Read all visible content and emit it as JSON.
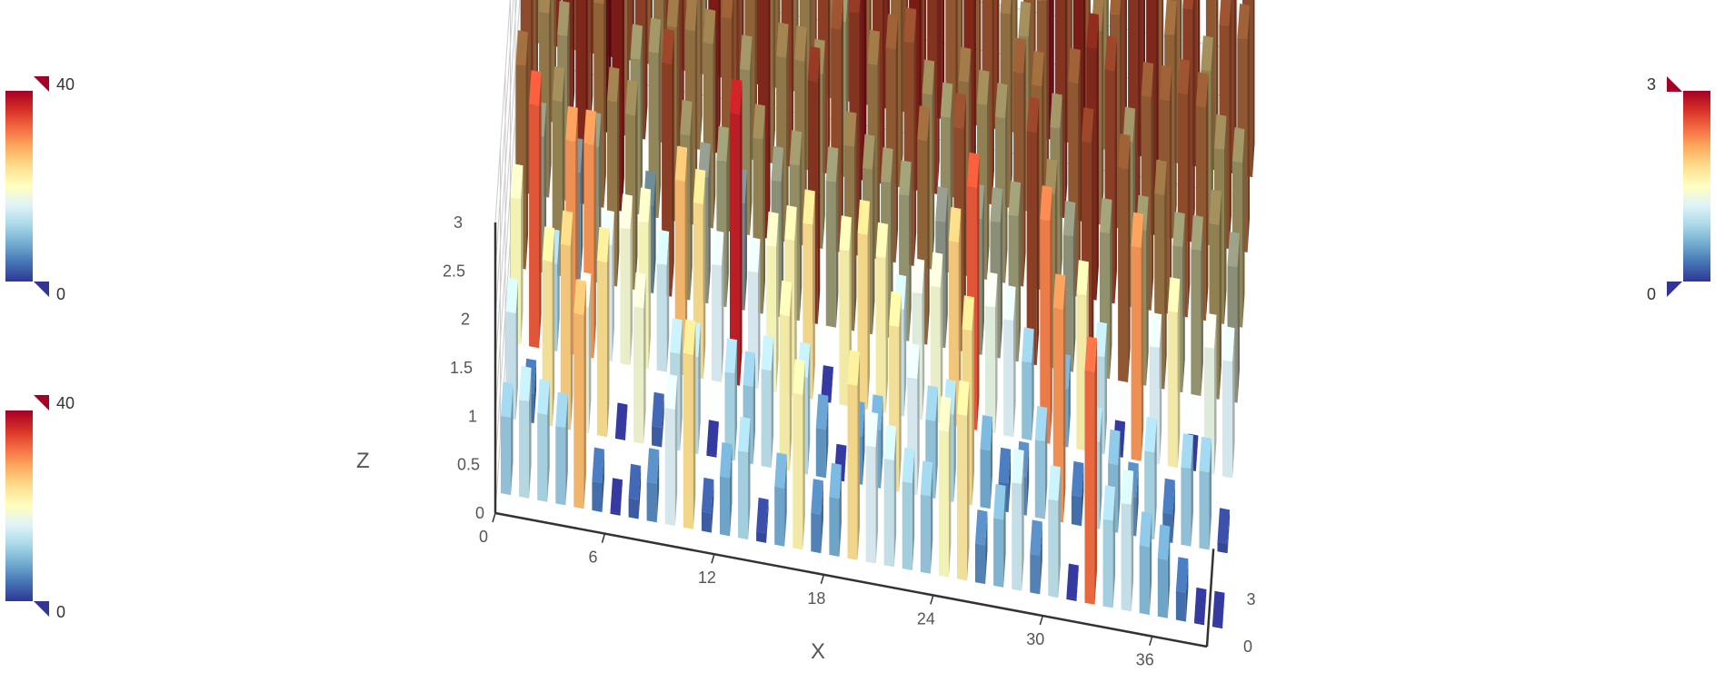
{
  "chart_data": {
    "type": "bar3d",
    "title": "",
    "xlabel": "X",
    "ylabel": "",
    "zlabel": "Z",
    "xlim": [
      0,
      39
    ],
    "ylim": [
      0,
      6
    ],
    "zlim": [
      0,
      3
    ],
    "grid": true,
    "x_ticks": [
      "0",
      "6",
      "12",
      "18",
      "24",
      "30",
      "36"
    ],
    "y_ticks": [
      "0",
      "3"
    ],
    "z_ticks": [
      "0",
      "0.5",
      "1",
      "1.5",
      "2",
      "2.5",
      "3"
    ],
    "visual_maps": [
      {
        "min_label": "0",
        "max_label": "40",
        "placement": "left-top"
      },
      {
        "min_label": "0",
        "max_label": "40",
        "placement": "left-bottom"
      },
      {
        "min_label": "0",
        "max_label": "3",
        "placement": "right-top"
      }
    ],
    "colors": [
      "#313695",
      "#4575b4",
      "#74add1",
      "#abd9e9",
      "#e0f3f8",
      "#ffffbf",
      "#fee090",
      "#fdae61",
      "#f46d43",
      "#d73027",
      "#a50026"
    ],
    "series": [
      {
        "name": "",
        "rows": [
          [
            0.8,
            1.0,
            0.9,
            0.8,
            2.0,
            0.3,
            0.0,
            0.2,
            0.4,
            1.2,
            1.8,
            0.2,
            0.6,
            0.9,
            0.1,
            0.6,
            1.6,
            0.4,
            0.6,
            1.8,
            1.2,
            1.1,
            0.9,
            0.8,
            1.5,
            1.7,
            0.4,
            0.7,
            1.1,
            0.4,
            1.0,
            0.0,
            2.4,
            0.9,
            1.1,
            0.7,
            0.6,
            0.3,
            0.0,
            0.0
          ],
          [
            1.1,
            0.3,
            1.7,
            1.9,
            1.3,
            1.8,
            0.0,
            1.4,
            0.2,
            1.0,
            1.0,
            0.0,
            0.9,
            0.8,
            1.0,
            1.6,
            1.0,
            0.5,
            0.0,
            0.5,
            0.6,
            1.7,
            1.2,
            0.8,
            0.9,
            1.8,
            0.6,
            0.3,
            0.4,
            0.8,
            2.2,
            0.3,
            0.9,
            0.7,
            0.4,
            0.9,
            0.3,
            0.8,
            0.8,
            0.1
          ],
          [
            1.5,
            2.5,
            0.9,
            2.2,
            2.2,
            1.2,
            1.4,
            1.5,
            1.1,
            2.0,
            1.8,
            1.2,
            2.8,
            1.2,
            1.5,
            1.6,
            1.8,
            0.0,
            1.6,
            1.8,
            1.6,
            1.1,
            1.3,
            1.4,
            1.9,
            2.5,
            1.3,
            1.2,
            0.8,
            2.3,
            0.6,
            1.6,
            1.0,
            0.0,
            2.2,
            1.2,
            1.6,
            0.0,
            1.3,
            1.2
          ],
          [
            2.1,
            1.4,
            1.8,
            1.1,
            1.4,
            1.9,
            1.8,
            0.9,
            2.4,
            1.7,
            1.3,
            1.5,
            1.1,
            1.8,
            1.4,
            1.6,
            2.5,
            1.5,
            1.9,
            1.7,
            1.6,
            1.5,
            2.1,
            1.3,
            2.3,
            1.4,
            1.4,
            1.5,
            2.4,
            1.8,
            1.4,
            2.4,
            1.5,
            2.2,
            1.6,
            2.0,
            1.5,
            1.5,
            1.8,
            1.4
          ],
          [
            2.3,
            1.9,
            1.7,
            2.6,
            2.1,
            2.7,
            1.6,
            1.7,
            2.0,
            2.0,
            1.9,
            2.2,
            1.7,
            2.6,
            1.9,
            1.9,
            1.8,
            2.3,
            2.5,
            2.0,
            2.2,
            2.3,
            1.8,
            1.6,
            2.0,
            1.8,
            1.7,
            2.2,
            2.1,
            1.7,
            2.2,
            2.6,
            2.4,
            1.7,
            2.2,
            2.2,
            2.3,
            2.2,
            1.8,
            1.7
          ],
          [
            2.2,
            2.0,
            2.6,
            2.4,
            2.9,
            2.1,
            2.4,
            2.0,
            2.5,
            2.0,
            2.7,
            2.3,
            2.1,
            2.0,
            2.4,
            1.9,
            2.4,
            1.6,
            2.8,
            2.5,
            2.1,
            2.7,
            2.5,
            2.2,
            2.6,
            2.3,
            2.0,
            1.8,
            2.2,
            2.5,
            2.7,
            2.0,
            2.2,
            2.5,
            2.6,
            2.1,
            2.4,
            1.8,
            2.3,
            2.2
          ],
          [
            1.8,
            2.6,
            2.1,
            2.4,
            2.7,
            2.4,
            2.2,
            2.5,
            2.3,
            1.9,
            2.2,
            2.4,
            2.6,
            2.1,
            2.0,
            2.2,
            1.9,
            2.4,
            2.1,
            2.6,
            2.3,
            2.5,
            2.7,
            2.1,
            2.2,
            2.4,
            2.0,
            2.2,
            2.9,
            2.3,
            2.2,
            1.8,
            2.4,
            2.6,
            2.2,
            2.1,
            2.5,
            2.2,
            2.4,
            2.3
          ]
        ]
      }
    ]
  }
}
